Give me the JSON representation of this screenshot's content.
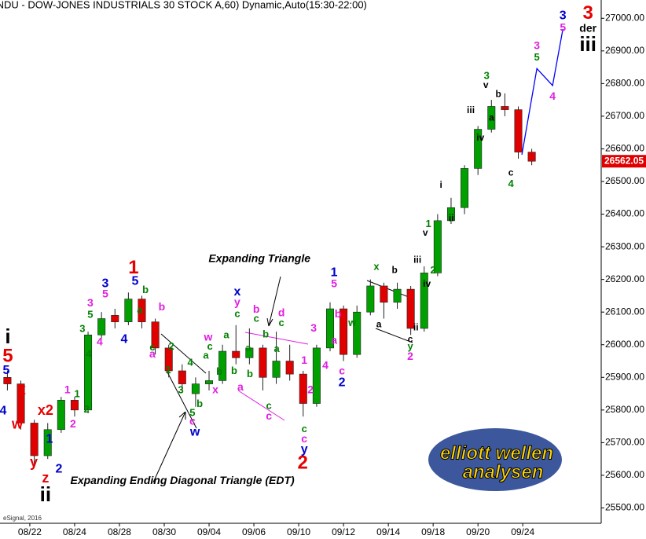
{
  "chart_data": {
    "type": "candlestick",
    "title": "INDU - DOW-JONES INDUSTRIALS 30 STOCK A,60) Dynamic,Auto(15:30-22:00)",
    "source": "eSignal, 2016",
    "logo": [
      "elliott wellen",
      "analysen"
    ],
    "up_color": "#00a000",
    "down_color": "#e00000",
    "xlim": [
      -1.33,
      25.5
    ],
    "ylim": [
      25453,
      27056
    ],
    "xticks": [
      {
        "value": 0,
        "label": "08/22"
      },
      {
        "value": 2,
        "label": "08/24"
      },
      {
        "value": 4,
        "label": "08/28"
      },
      {
        "value": 6,
        "label": "08/30"
      },
      {
        "value": 8,
        "label": "09/04"
      },
      {
        "value": 10,
        "label": "09/06"
      },
      {
        "value": 12,
        "label": "09/10"
      },
      {
        "value": 14,
        "label": "09/12"
      },
      {
        "value": 16,
        "label": "09/14"
      },
      {
        "value": 18,
        "label": "09/18"
      },
      {
        "value": 20,
        "label": "09/20"
      },
      {
        "value": 22,
        "label": "09/24"
      }
    ],
    "yticks": [
      {
        "value": 25500,
        "label": "25500.00"
      },
      {
        "value": 25600,
        "label": "25600.00"
      },
      {
        "value": 25700,
        "label": "25700.00"
      },
      {
        "value": 25800,
        "label": "25800.00"
      },
      {
        "value": 25900,
        "label": "25900.00"
      },
      {
        "value": 26000,
        "label": "26000.00"
      },
      {
        "value": 26100,
        "label": "26100.00"
      },
      {
        "value": 26200,
        "label": "26200.00"
      },
      {
        "value": 26300,
        "label": "26300.00"
      },
      {
        "value": 26400,
        "label": "26400.00"
      },
      {
        "value": 26500,
        "label": "26500.00"
      },
      {
        "value": 26600,
        "label": "26600.00"
      },
      {
        "value": 26700,
        "label": "26700.00"
      },
      {
        "value": 26800,
        "label": "26800.00"
      },
      {
        "value": 26900,
        "label": "26900.00"
      },
      {
        "value": 27000,
        "label": "27000.00"
      }
    ],
    "x": [
      -1.0,
      -0.4,
      0.2,
      0.8,
      1.4,
      2.0,
      2.6,
      3.2,
      3.8,
      4.4,
      5.0,
      5.6,
      6.2,
      6.8,
      7.4,
      8.0,
      8.6,
      9.2,
      9.8,
      10.4,
      11.0,
      11.6,
      12.2,
      12.8,
      13.4,
      14.0,
      14.6,
      15.2,
      15.8,
      16.4,
      17.0,
      17.6,
      18.2,
      18.8,
      19.4,
      20.0,
      20.6,
      21.2,
      21.8,
      22.4
    ],
    "open": [
      25900,
      25880,
      25760,
      25660,
      25740,
      25830,
      25800,
      26030,
      26090,
      26070,
      26140,
      26070,
      25990,
      25920,
      25850,
      25880,
      25890,
      25980,
      25960,
      25990,
      25900,
      25950,
      25910,
      25820,
      25990,
      26110,
      25970,
      26100,
      26180,
      26130,
      26170,
      26050,
      26220,
      26380,
      26420,
      26540,
      26660,
      26730,
      26720,
      26590
    ],
    "high": [
      25920,
      25890,
      25770,
      25760,
      25840,
      25840,
      26040,
      26100,
      26110,
      26160,
      26150,
      26080,
      26000,
      25940,
      25900,
      25920,
      26000,
      26060,
      26050,
      26000,
      26040,
      26000,
      25920,
      26000,
      26130,
      26120,
      26120,
      26200,
      26190,
      26190,
      26180,
      26240,
      26400,
      26450,
      26550,
      26670,
      26750,
      26770,
      26730,
      26600
    ],
    "low": [
      25860,
      25740,
      25630,
      25650,
      25730,
      25780,
      25790,
      26020,
      26050,
      26060,
      26050,
      25970,
      25900,
      25860,
      25810,
      25860,
      25880,
      25940,
      25940,
      25860,
      25880,
      25890,
      25780,
      25810,
      25980,
      25950,
      25960,
      26090,
      26080,
      26110,
      26030,
      26040,
      26210,
      26370,
      26400,
      26520,
      26650,
      26700,
      26570,
      26550
    ],
    "close": [
      25880,
      25760,
      25660,
      25740,
      25830,
      25800,
      26030,
      26080,
      26070,
      26140,
      26070,
      25990,
      25920,
      25880,
      25880,
      25890,
      25980,
      25960,
      25990,
      25900,
      25950,
      25910,
      25820,
      25990,
      26110,
      25970,
      26100,
      26180,
      26130,
      26170,
      26050,
      26220,
      26380,
      26420,
      26540,
      26660,
      26730,
      26720,
      26590,
      26562.05
    ],
    "last_price": {
      "value": 26562.05,
      "label": "26562.05"
    },
    "projection": {
      "color": "#0000ff",
      "x": [
        21.96,
        22.63,
        23.33,
        23.79
      ],
      "y": [
        26582,
        26846,
        26794,
        26967
      ]
    },
    "notes": [
      {
        "text": "Expanding Triangle",
        "x": 10.25,
        "y": 26262
      },
      {
        "text": "Expanding Ending Diagonal Triangle (EDT)",
        "x": 6.81,
        "y": 25582
      }
    ],
    "annotations": [
      {
        "color": "#e60000",
        "size": 24,
        "labels": [
          {
            "text": "5",
            "x": -0.98,
            "y": 25963
          },
          {
            "text": "1",
            "x": 4.63,
            "y": 26234
          },
          {
            "text": "2",
            "x": 12.18,
            "y": 25636
          },
          {
            "text": "3",
            "x": 24.91,
            "y": 27014
          }
        ]
      },
      {
        "color": "#e60000",
        "size": 18,
        "labels": [
          {
            "text": "w",
            "x": -0.56,
            "y": 25755
          },
          {
            "text": "x",
            "x": -0.35,
            "y": 25860
          },
          {
            "text": "x2",
            "x": 0.7,
            "y": 25797
          },
          {
            "text": "y",
            "x": 0.18,
            "y": 25638
          },
          {
            "text": "z",
            "x": 0.7,
            "y": 25589
          }
        ]
      },
      {
        "color": "#000000",
        "size": 26,
        "labels": [
          {
            "text": "i",
            "x": -0.98,
            "y": 26021
          },
          {
            "text": "ii",
            "x": 0.7,
            "y": 25537
          },
          {
            "text": "iii",
            "x": 24.91,
            "y": 26916
          }
        ]
      },
      {
        "color": "#000000",
        "size": 14,
        "labels": [
          {
            "text": "der",
            "x": 24.91,
            "y": 26967
          }
        ]
      },
      {
        "color": "#000000",
        "size": 12,
        "labels": [
          {
            "text": "b",
            "x": 16.28,
            "y": 26227
          },
          {
            "text": "a",
            "x": 15.58,
            "y": 26061
          },
          {
            "text": "c",
            "x": 16.98,
            "y": 26016
          },
          {
            "text": "ii",
            "x": 17.23,
            "y": 26051
          },
          {
            "text": "v",
            "x": 17.65,
            "y": 26341
          },
          {
            "text": "iii",
            "x": 17.3,
            "y": 26259
          },
          {
            "text": "iv",
            "x": 17.72,
            "y": 26185
          },
          {
            "text": "i",
            "x": 18.35,
            "y": 26488
          },
          {
            "text": "ii",
            "x": 18.81,
            "y": 26386
          },
          {
            "text": "iii",
            "x": 19.68,
            "y": 26717
          },
          {
            "text": "iv",
            "x": 20.11,
            "y": 26633
          },
          {
            "text": "v",
            "x": 20.35,
            "y": 26794
          },
          {
            "text": "b",
            "x": 20.91,
            "y": 26766
          },
          {
            "text": "a",
            "x": 20.6,
            "y": 26694
          },
          {
            "text": "c",
            "x": 21.47,
            "y": 26526
          }
        ]
      },
      {
        "color": "#0000cc",
        "size": 16,
        "labels": [
          {
            "text": "5",
            "x": -1.05,
            "y": 25921
          },
          {
            "text": "4",
            "x": -1.19,
            "y": 25797
          },
          {
            "text": "1",
            "x": 0.88,
            "y": 25710
          },
          {
            "text": "2",
            "x": 1.3,
            "y": 25619
          },
          {
            "text": "3",
            "x": 3.37,
            "y": 26187
          },
          {
            "text": "4",
            "x": 4.21,
            "y": 26016
          },
          {
            "text": "5",
            "x": 4.7,
            "y": 26194
          },
          {
            "text": "w",
            "x": 7.37,
            "y": 25731
          },
          {
            "text": "x",
            "x": 9.26,
            "y": 26161
          },
          {
            "text": "y",
            "x": 12.25,
            "y": 25678
          },
          {
            "text": "1",
            "x": 13.58,
            "y": 26220
          },
          {
            "text": "2",
            "x": 13.93,
            "y": 25883
          },
          {
            "text": "3",
            "x": 23.79,
            "y": 27007
          }
        ]
      },
      {
        "color": "#e020e0",
        "size": 14,
        "labels": [
          {
            "text": "1",
            "x": 1.68,
            "y": 25860
          },
          {
            "text": "2",
            "x": 1.93,
            "y": 25755
          },
          {
            "text": "3",
            "x": 2.7,
            "y": 26126
          },
          {
            "text": "4",
            "x": 3.12,
            "y": 26007
          },
          {
            "text": "5",
            "x": 3.37,
            "y": 26154
          },
          {
            "text": "b",
            "x": 5.89,
            "y": 26114
          },
          {
            "text": "a",
            "x": 5.47,
            "y": 25970
          },
          {
            "text": "c",
            "x": 7.26,
            "y": 25764
          },
          {
            "text": "w",
            "x": 7.96,
            "y": 26021
          },
          {
            "text": "x",
            "x": 8.28,
            "y": 25860
          },
          {
            "text": "y",
            "x": 9.26,
            "y": 26129
          },
          {
            "text": "a",
            "x": 9.4,
            "y": 25869
          },
          {
            "text": "b",
            "x": 10.11,
            "y": 26107
          },
          {
            "text": "c",
            "x": 10.67,
            "y": 25780
          },
          {
            "text": "d",
            "x": 11.23,
            "y": 26096
          },
          {
            "text": "3",
            "x": 12.67,
            "y": 26049
          },
          {
            "text": "1",
            "x": 12.25,
            "y": 25951
          },
          {
            "text": "2",
            "x": 12.53,
            "y": 25860
          },
          {
            "text": "c",
            "x": 12.25,
            "y": 25710
          },
          {
            "text": "4",
            "x": 13.19,
            "y": 25935
          },
          {
            "text": "5",
            "x": 13.58,
            "y": 26185
          },
          {
            "text": "b",
            "x": 13.75,
            "y": 26093
          },
          {
            "text": "a",
            "x": 13.58,
            "y": 26012
          },
          {
            "text": "c",
            "x": 13.93,
            "y": 25918
          },
          {
            "text": "2",
            "x": 16.98,
            "y": 25963
          },
          {
            "text": "3",
            "x": 22.63,
            "y": 26914
          },
          {
            "text": "4",
            "x": 23.33,
            "y": 26759
          },
          {
            "text": "5",
            "x": 23.79,
            "y": 26970
          }
        ]
      },
      {
        "color": "#008000",
        "size": 13,
        "labels": [
          {
            "text": "1",
            "x": 2.11,
            "y": 25848
          },
          {
            "text": "2",
            "x": 2.53,
            "y": 25801
          },
          {
            "text": "3",
            "x": 2.35,
            "y": 26047
          },
          {
            "text": "4",
            "x": 2.63,
            "y": 25970
          },
          {
            "text": "5",
            "x": 2.7,
            "y": 26091
          },
          {
            "text": "b",
            "x": 5.16,
            "y": 26166
          },
          {
            "text": "a",
            "x": 4.91,
            "y": 26105
          },
          {
            "text": "c",
            "x": 5.47,
            "y": 25991
          },
          {
            "text": "2",
            "x": 6.32,
            "y": 25993
          },
          {
            "text": "1",
            "x": 6.18,
            "y": 25921
          },
          {
            "text": "3",
            "x": 6.74,
            "y": 25860
          },
          {
            "text": "4",
            "x": 7.16,
            "y": 25944
          },
          {
            "text": "5",
            "x": 7.26,
            "y": 25790
          },
          {
            "text": "b",
            "x": 7.58,
            "y": 25818
          },
          {
            "text": "c",
            "x": 8.04,
            "y": 25993
          },
          {
            "text": "a",
            "x": 7.86,
            "y": 25965
          },
          {
            "text": "b",
            "x": 8.46,
            "y": 25916
          },
          {
            "text": "c",
            "x": 9.26,
            "y": 26093
          },
          {
            "text": "a",
            "x": 8.77,
            "y": 26028
          },
          {
            "text": "b",
            "x": 9.12,
            "y": 25918
          },
          {
            "text": "c",
            "x": 10.11,
            "y": 26079
          },
          {
            "text": "c",
            "x": 11.23,
            "y": 26065
          },
          {
            "text": "b",
            "x": 10.53,
            "y": 26030
          },
          {
            "text": "a",
            "x": 9.75,
            "y": 25988
          },
          {
            "text": "b",
            "x": 9.82,
            "y": 25909
          },
          {
            "text": "a",
            "x": 11.02,
            "y": 25986
          },
          {
            "text": "c",
            "x": 10.67,
            "y": 25811
          },
          {
            "text": "c",
            "x": 12.25,
            "y": 25741
          },
          {
            "text": "w",
            "x": 14.39,
            "y": 26065
          },
          {
            "text": "x",
            "x": 15.47,
            "y": 26238
          },
          {
            "text": "y",
            "x": 16.98,
            "y": 25993
          },
          {
            "text": "1",
            "x": 17.79,
            "y": 26369
          },
          {
            "text": "2",
            "x": 18.0,
            "y": 26227
          },
          {
            "text": "3",
            "x": 20.39,
            "y": 26822
          },
          {
            "text": "4",
            "x": 21.47,
            "y": 26491
          },
          {
            "text": "5",
            "x": 22.63,
            "y": 26879
          }
        ]
      }
    ]
  }
}
